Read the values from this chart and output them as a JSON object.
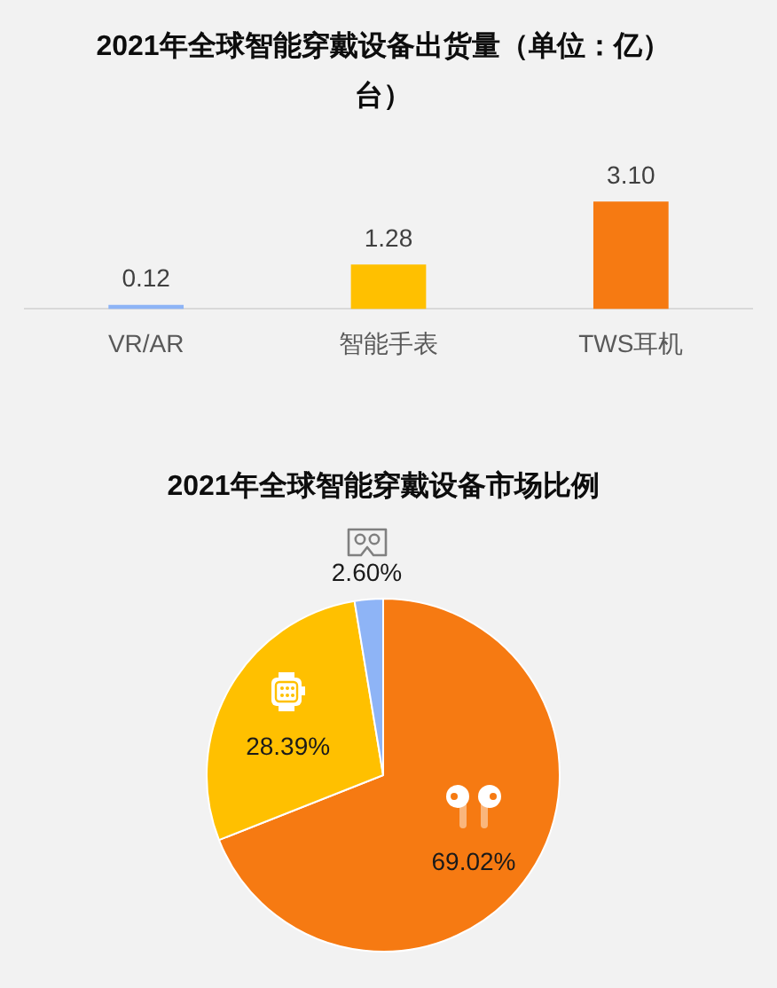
{
  "chart_data": [
    {
      "type": "bar",
      "title": "2021年全球智能穿戴设备出货量（单位：亿）台）",
      "categories": [
        "VR/AR",
        "智能手表",
        "TWS耳机"
      ],
      "values": [
        0.12,
        1.28,
        3.1
      ],
      "colors": [
        "#8eb4f6",
        "#ffc000",
        "#f67a12"
      ],
      "value_labels": [
        "0.12",
        "1.28",
        "3.10"
      ],
      "grid": false,
      "legend": false,
      "tick_labels": "x"
    },
    {
      "type": "pie",
      "title": "2021年全球智能穿戴设备市场比例",
      "categories": [
        null,
        null,
        null
      ],
      "values": [
        69.02,
        28.39,
        2.6
      ],
      "colors": [
        "#f67a12",
        "#ffc000",
        "#8eb4f6"
      ],
      "value_labels": [
        "69.02%",
        "28.39%",
        "2.60%"
      ],
      "legend": false
    }
  ]
}
